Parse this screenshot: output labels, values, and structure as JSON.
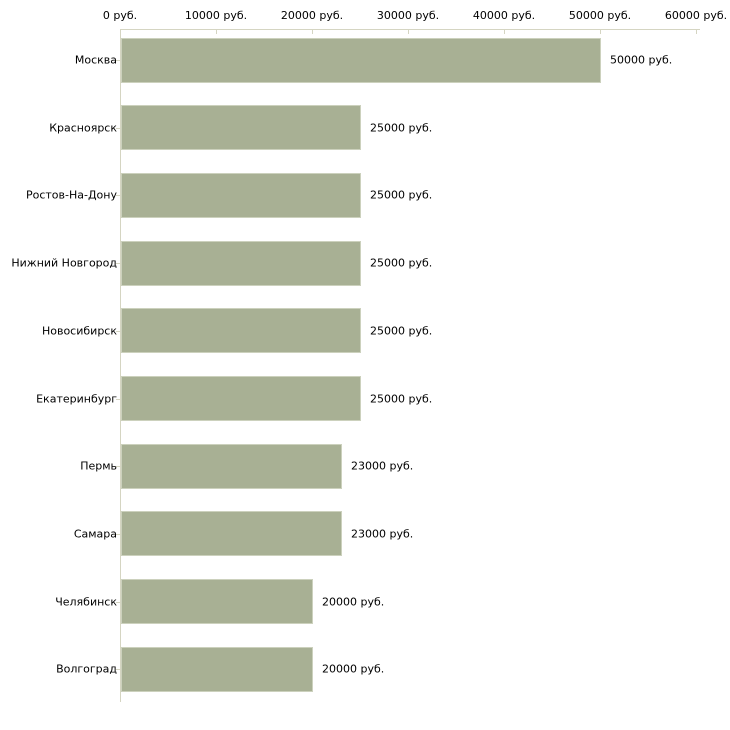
{
  "chart_data": {
    "type": "bar",
    "orientation": "horizontal",
    "title": "",
    "xlabel": "",
    "ylabel": "",
    "unit_suffix": " руб.",
    "xlim": [
      0,
      60000
    ],
    "grid": false,
    "legend": "none",
    "x_ticks": [
      0,
      10000,
      20000,
      30000,
      40000,
      50000,
      60000
    ],
    "x_tick_labels": [
      "0 руб.",
      "10000 руб.",
      "20000 руб.",
      "30000 руб.",
      "40000 руб.",
      "50000 руб.",
      "60000 руб."
    ],
    "categories": [
      "Москва",
      "Красноярск",
      "Ростов-На-Дону",
      "Нижний Новгород",
      "Новосибирск",
      "Екатеринбург",
      "Пермь",
      "Самара",
      "Челябинск",
      "Волгоград"
    ],
    "values": [
      50000,
      25000,
      25000,
      25000,
      25000,
      25000,
      23000,
      23000,
      20000,
      20000
    ],
    "value_labels": [
      "50000 руб.",
      "25000 руб.",
      "25000 руб.",
      "25000 руб.",
      "25000 руб.",
      "25000 руб.",
      "23000 руб.",
      "23000 руб.",
      "20000 руб.",
      "20000 руб."
    ]
  },
  "colors": {
    "background": "#ffffff",
    "bar_fill": "#a8b094",
    "bar_border": "#ccd1bd",
    "axis_line": "#d5d5c2",
    "tick_mark": "#d5d5c2",
    "text": "#000000"
  }
}
